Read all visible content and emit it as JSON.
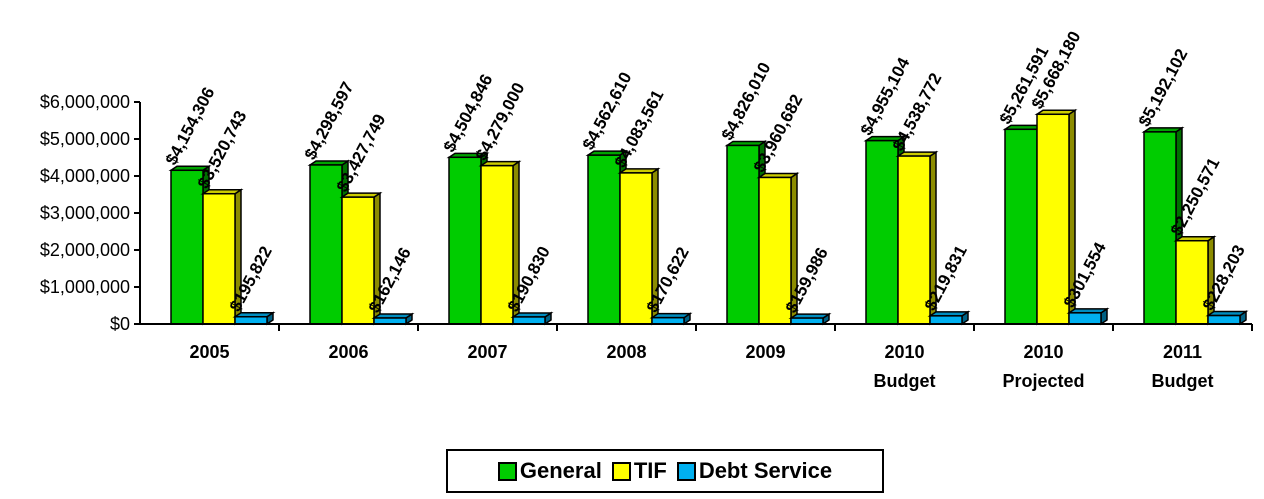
{
  "chart_data": {
    "type": "bar",
    "categories": [
      [
        "2005"
      ],
      [
        "2006"
      ],
      [
        "2007"
      ],
      [
        "2008"
      ],
      [
        "2009"
      ],
      [
        "2010",
        "Budget"
      ],
      [
        "2010",
        "Projected"
      ],
      [
        "2011",
        "Budget"
      ]
    ],
    "series": [
      {
        "name": "General",
        "color": "#00CC00",
        "values": [
          4154306,
          4298597,
          4504846,
          4562610,
          4826010,
          4955104,
          5261591,
          5192102
        ],
        "labels": [
          "$4,154,306",
          "$4,298,597",
          "$4,504,846",
          "$4,562,610",
          "$4,826,010",
          "$4,955,104",
          "$5,261,591",
          "$5,192,102"
        ]
      },
      {
        "name": "TIF",
        "color": "#FFFF00",
        "values": [
          3520743,
          3427749,
          4279000,
          4083561,
          3960682,
          4538772,
          5668180,
          2250571
        ],
        "labels": [
          "$3,520,743",
          "$3,427,749",
          "$4,279,000",
          "$4,083,561",
          "$3,960,682",
          "$4,538,772",
          "$5,668,180",
          "$2,250,571"
        ]
      },
      {
        "name": "Debt Service",
        "color": "#00B0F0",
        "values": [
          195822,
          162146,
          190830,
          170622,
          159986,
          219831,
          301554,
          228203
        ],
        "labels": [
          "$195,822",
          "$162,146",
          "$190,830",
          "$170,622",
          "$159,986",
          "$219,831",
          "$301,554",
          "$228,203"
        ]
      }
    ],
    "y_ticks": [
      0,
      1000000,
      2000000,
      3000000,
      4000000,
      5000000,
      6000000
    ],
    "y_tick_labels": [
      "$0",
      "$1,000,000",
      "$2,000,000",
      "$3,000,000",
      "$4,000,000",
      "$5,000,000",
      "$6,000,000"
    ],
    "ylim": [
      0,
      6000000
    ],
    "title": "",
    "xlabel": "",
    "ylabel": "",
    "grid": false,
    "legend_position": "bottom-center"
  }
}
